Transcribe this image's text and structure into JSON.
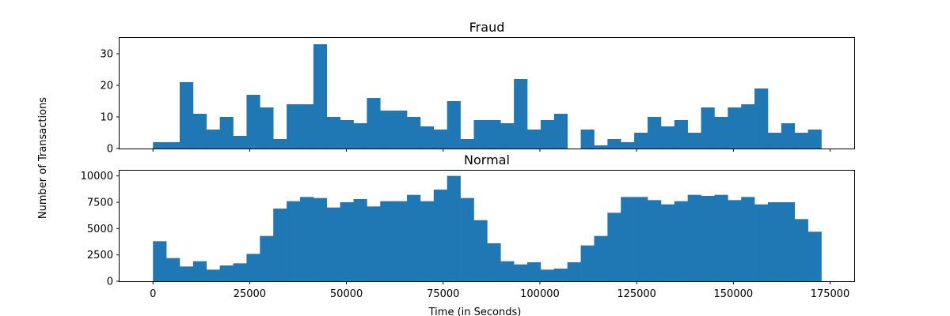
{
  "figure": {
    "shared_ylabel": "Number of Transactions",
    "shared_xlabel": "Time (in Seconds)",
    "bar_color": "#1f77b4"
  },
  "chart_data": [
    {
      "type": "bar",
      "title": "Fraud",
      "bin_width": 3455,
      "x_start": 0,
      "ylim": [
        0,
        35
      ],
      "yticks": [
        0,
        10,
        20,
        30
      ],
      "xlim": [
        -8640,
        181440
      ],
      "xticks": [
        0,
        25000,
        50000,
        75000,
        100000,
        125000,
        150000,
        175000
      ],
      "show_xtick_labels": false,
      "values": [
        2,
        2,
        21,
        11,
        6,
        10,
        4,
        17,
        13,
        3,
        14,
        14,
        33,
        10,
        9,
        8,
        16,
        12,
        12,
        10,
        7,
        6,
        15,
        3,
        9,
        9,
        8,
        22,
        6,
        9,
        11,
        0,
        6,
        1,
        3,
        2,
        5,
        10,
        7,
        9,
        5,
        13,
        10,
        13,
        14,
        19,
        5,
        8,
        5,
        6
      ]
    },
    {
      "type": "bar",
      "title": "Normal",
      "bin_width": 3455,
      "x_start": 0,
      "ylim": [
        0,
        10500
      ],
      "yticks": [
        0,
        2500,
        5000,
        7500,
        10000
      ],
      "xlim": [
        -8640,
        181440
      ],
      "xticks": [
        0,
        25000,
        50000,
        75000,
        100000,
        125000,
        150000,
        175000
      ],
      "show_xtick_labels": true,
      "values": [
        3800,
        2200,
        1400,
        1900,
        1100,
        1500,
        1700,
        2600,
        4300,
        6900,
        7600,
        8000,
        7900,
        7000,
        7500,
        7800,
        7100,
        7600,
        7600,
        8200,
        7600,
        8700,
        10000,
        7900,
        5800,
        3600,
        1900,
        1600,
        1800,
        1100,
        1200,
        1800,
        3400,
        4300,
        6500,
        8000,
        8000,
        7700,
        7300,
        7600,
        8200,
        8100,
        8200,
        7700,
        8000,
        7300,
        7500,
        7500,
        5900,
        4700
      ]
    }
  ]
}
